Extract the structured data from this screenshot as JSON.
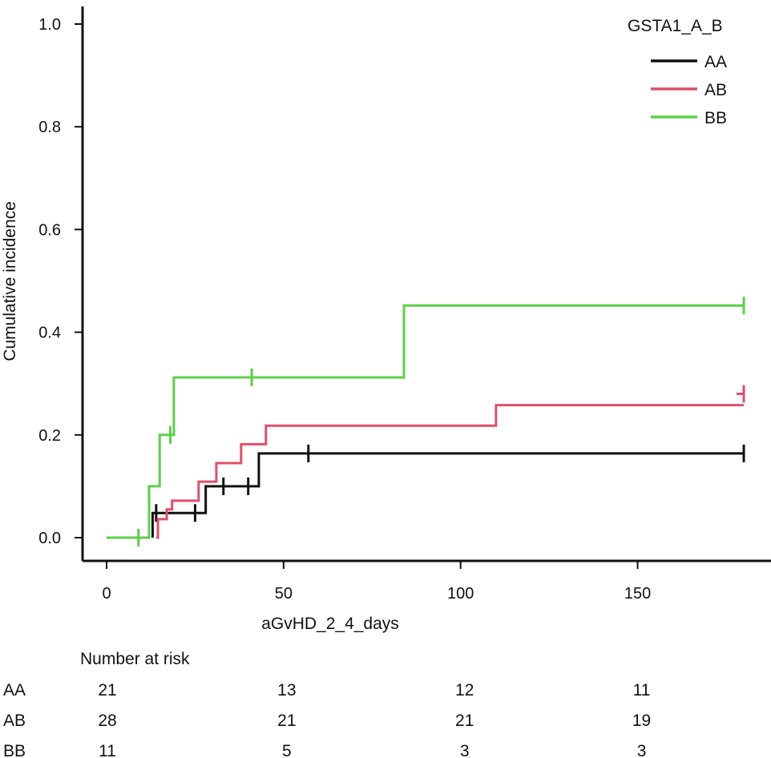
{
  "chart_data": {
    "type": "line",
    "subtype": "cumulative-incidence-step",
    "title": "",
    "xlabel": "aGvHD_2_4_days",
    "ylabel": "Cumulative incidence",
    "xlim": [
      0,
      180
    ],
    "ylim": [
      0,
      1.0
    ],
    "xticks": [
      0,
      50,
      100,
      150
    ],
    "xtick_labels": [
      "0",
      "50",
      "100",
      "150"
    ],
    "yticks": [
      0,
      0.2,
      0.4,
      0.6,
      0.8,
      1.0
    ],
    "ytick_labels": [
      "0.0",
      "0.2",
      "0.4",
      "0.6",
      "0.8",
      "1.0"
    ],
    "grid": false,
    "legend": {
      "title": "GSTA1_A_B",
      "position": "top-right"
    },
    "series": [
      {
        "name": "AA",
        "color": "#111111",
        "steps": [
          [
            0,
            0
          ],
          [
            13,
            0.048
          ],
          [
            28,
            0.1
          ],
          [
            43,
            0.164
          ],
          [
            180,
            0.164
          ]
        ],
        "start_x": 13,
        "censor": [
          14,
          25,
          33,
          40,
          57,
          180
        ]
      },
      {
        "name": "AB",
        "color": "#e05068",
        "steps": [
          [
            0,
            0
          ],
          [
            14.5,
            0.036
          ],
          [
            16.5,
            0.036
          ],
          [
            17,
            0.055
          ],
          [
            18.5,
            0.072
          ],
          [
            26,
            0.109
          ],
          [
            31,
            0.145
          ],
          [
            38,
            0.182
          ],
          [
            45,
            0.218
          ],
          [
            110,
            0.258
          ],
          [
            180,
            0.258
          ]
        ],
        "start_x": 14,
        "censor": [
          180
        ],
        "censor_offset": [
          [
            180,
            0.28
          ]
        ]
      },
      {
        "name": "BB",
        "color": "#5ccf4a",
        "steps": [
          [
            0,
            0
          ],
          [
            12,
            0.1
          ],
          [
            15,
            0.2
          ],
          [
            19,
            0.312
          ],
          [
            84,
            0.452
          ],
          [
            180,
            0.452
          ]
        ],
        "start_x": 0,
        "censor": [
          9,
          18,
          41,
          180
        ]
      }
    ],
    "risk_table": {
      "title": "Number at risk",
      "times": [
        0,
        50,
        100,
        150
      ],
      "rows": [
        {
          "group": "AA",
          "values": [
            "21",
            "13",
            "12",
            "11"
          ]
        },
        {
          "group": "AB",
          "values": [
            "28",
            "21",
            "21",
            "19"
          ]
        },
        {
          "group": "BB",
          "values": [
            "11",
            "5",
            "3",
            "3"
          ]
        }
      ]
    }
  }
}
